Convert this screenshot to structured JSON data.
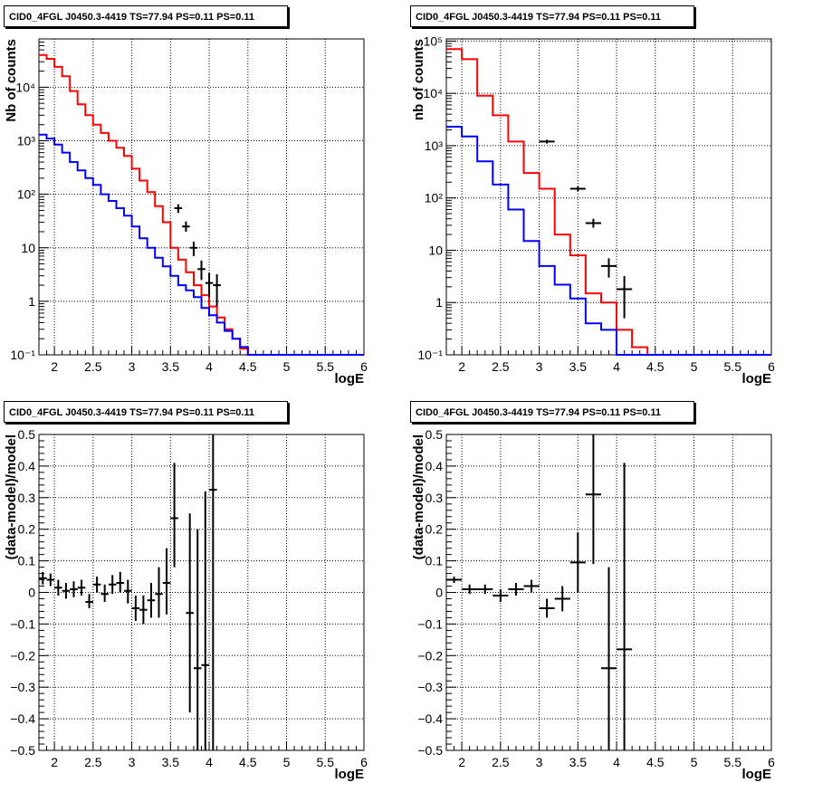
{
  "panel_title": "CID0_4FGL J0450.3-4419 TS=77.94 PS=0.11 PS=0.11",
  "chart_data": [
    {
      "type": "line",
      "title": "CID0_4FGL J0450.3-4419 TS=77.94 PS=0.11 PS=0.11",
      "xlabel": "logE",
      "ylabel": "Nb of counts",
      "log_y": true,
      "xlim": [
        1.8,
        6.0
      ],
      "ylim": [
        0.1,
        80000
      ],
      "x_ticks": [
        "2",
        "2.5",
        "3",
        "3.5",
        "4",
        "4.5",
        "5",
        "5.5",
        "6"
      ],
      "y_ticks": [
        "10⁻¹",
        "1",
        "10",
        "10²",
        "10³",
        "10⁴"
      ],
      "grid": true,
      "bin_edges": [
        1.8,
        1.9,
        2.0,
        2.1,
        2.2,
        2.3,
        2.4,
        2.5,
        2.6,
        2.7,
        2.8,
        2.9,
        3.0,
        3.1,
        3.2,
        3.3,
        3.4,
        3.5,
        3.6,
        3.7,
        3.8,
        3.9,
        4.0,
        4.1,
        4.2,
        4.3,
        4.4,
        4.5,
        4.6,
        4.7,
        4.8,
        4.9,
        5.0,
        5.1,
        5.2,
        5.3,
        5.4,
        5.5,
        5.6,
        5.7,
        5.8,
        5.9,
        6.0
      ],
      "series": [
        {
          "color": "#ff0000",
          "values": [
            40000,
            34000,
            24000,
            16000,
            8500,
            4800,
            3000,
            2000,
            1400,
            1000,
            740,
            520,
            300,
            180,
            110,
            60,
            30,
            10,
            6,
            3.5,
            2,
            1.3,
            0.8,
            0.5,
            0.3,
            0.2,
            0.13,
            0.1,
            0.1,
            0.1,
            0.1,
            0.1,
            0.1,
            0.1,
            0.1,
            0.1,
            0.1,
            0.1,
            0.1,
            0.1,
            0.1,
            0.1
          ]
        },
        {
          "color": "#0000ff",
          "values": [
            1300,
            1100,
            850,
            600,
            400,
            280,
            200,
            150,
            100,
            75,
            55,
            40,
            25,
            15,
            10,
            6.5,
            4.5,
            3,
            2,
            1.6,
            1.2,
            0.75,
            0.55,
            0.4,
            0.28,
            0.2,
            0.14,
            0.1,
            0.1,
            0.1,
            0.1,
            0.1,
            0.1,
            0.1,
            0.1,
            0.1,
            0.1,
            0.1,
            0.1,
            0.1,
            0.1,
            0.1
          ]
        }
      ],
      "data_points": [
        {
          "x": 3.6,
          "y": 55,
          "xerr": 0.05,
          "ylo": 45,
          "yhi": 65
        },
        {
          "x": 3.7,
          "y": 25,
          "xerr": 0.05,
          "ylo": 20,
          "yhi": 31
        },
        {
          "x": 3.8,
          "y": 10,
          "xerr": 0.05,
          "ylo": 7,
          "yhi": 13
        },
        {
          "x": 3.9,
          "y": 4,
          "xerr": 0.05,
          "ylo": 2.5,
          "yhi": 5.8
        },
        {
          "x": 4.0,
          "y": 2.2,
          "xerr": 0.05,
          "ylo": 1.2,
          "yhi": 3.4
        },
        {
          "x": 4.1,
          "y": 2.0,
          "xerr": 0.05,
          "ylo": 0.8,
          "yhi": 3.2
        }
      ]
    },
    {
      "type": "line",
      "title": "CID0_4FGL J0450.3-4419 TS=77.94 PS=0.11 PS=0.11",
      "xlabel": "logE",
      "ylabel": "nb of counts",
      "log_y": true,
      "xlim": [
        1.8,
        6.0
      ],
      "ylim": [
        0.1,
        110000
      ],
      "x_ticks": [
        "2",
        "2.5",
        "3",
        "3.5",
        "4",
        "4.5",
        "5",
        "5.5",
        "6"
      ],
      "y_ticks": [
        "10⁻¹",
        "1",
        "10",
        "10²",
        "10³",
        "10⁴",
        "10⁵"
      ],
      "grid": true,
      "bin_edges": [
        1.8,
        2.0,
        2.2,
        2.4,
        2.6,
        2.8,
        3.0,
        3.2,
        3.4,
        3.6,
        3.8,
        4.0,
        4.2,
        4.4,
        4.6,
        4.8,
        5.0,
        5.2,
        5.4,
        5.6,
        5.8,
        6.0
      ],
      "series": [
        {
          "color": "#ff0000",
          "values": [
            70000,
            45000,
            9000,
            3800,
            1200,
            300,
            150,
            20,
            8,
            1.5,
            1,
            0.3,
            0.14,
            0.1,
            0.1,
            0.1,
            0.1,
            0.1,
            0.1,
            0.1,
            0.1
          ]
        },
        {
          "color": "#0000ff",
          "values": [
            2300,
            1500,
            500,
            180,
            60,
            15,
            5,
            2.2,
            1.2,
            0.4,
            0.3,
            0.1,
            0.1,
            0.1,
            0.1,
            0.1,
            0.1,
            0.1,
            0.1,
            0.1,
            0.1
          ]
        }
      ],
      "data_points": [
        {
          "x": 3.1,
          "y": 1200,
          "xerr": 0.1,
          "ylo": 1100,
          "yhi": 1300
        },
        {
          "x": 3.5,
          "y": 150,
          "xerr": 0.1,
          "ylo": 135,
          "yhi": 165
        },
        {
          "x": 3.7,
          "y": 33,
          "xerr": 0.1,
          "ylo": 27,
          "yhi": 40
        },
        {
          "x": 3.9,
          "y": 5,
          "xerr": 0.1,
          "ylo": 3,
          "yhi": 7
        },
        {
          "x": 4.1,
          "y": 1.8,
          "xerr": 0.1,
          "ylo": 0.5,
          "yhi": 3.2
        }
      ]
    },
    {
      "type": "scatter",
      "title": "CID0_4FGL J0450.3-4419 TS=77.94 PS=0.11 PS=0.11",
      "xlabel": "logE",
      "ylabel": "(data-model)/model",
      "log_y": false,
      "xlim": [
        1.8,
        6.0
      ],
      "ylim": [
        -0.5,
        0.5
      ],
      "x_ticks": [
        "2",
        "2.5",
        "3",
        "3.5",
        "4",
        "4.5",
        "5",
        "5.5",
        "6"
      ],
      "y_ticks": [
        "−0.5",
        "−0.4",
        "−0.3",
        "−0.2",
        "−0.1",
        "0",
        "0.1",
        "0.2",
        "0.3",
        "0.4",
        "0.5"
      ],
      "grid": true,
      "data_points": [
        {
          "x": 1.85,
          "y": 0.045,
          "xerr": 0.05,
          "ylo": 0.025,
          "yhi": 0.065
        },
        {
          "x": 1.95,
          "y": 0.04,
          "xerr": 0.05,
          "ylo": 0.02,
          "yhi": 0.06
        },
        {
          "x": 2.05,
          "y": 0.015,
          "xerr": 0.05,
          "ylo": -0.01,
          "yhi": 0.04
        },
        {
          "x": 2.15,
          "y": 0.005,
          "xerr": 0.05,
          "ylo": -0.02,
          "yhi": 0.03
        },
        {
          "x": 2.25,
          "y": 0.01,
          "xerr": 0.05,
          "ylo": -0.015,
          "yhi": 0.035
        },
        {
          "x": 2.35,
          "y": 0.015,
          "xerr": 0.05,
          "ylo": -0.01,
          "yhi": 0.04
        },
        {
          "x": 2.45,
          "y": -0.03,
          "xerr": 0.05,
          "ylo": -0.05,
          "yhi": -0.005
        },
        {
          "x": 2.55,
          "y": 0.025,
          "xerr": 0.05,
          "ylo": 0.0,
          "yhi": 0.05
        },
        {
          "x": 2.65,
          "y": -0.005,
          "xerr": 0.05,
          "ylo": -0.03,
          "yhi": 0.025
        },
        {
          "x": 2.75,
          "y": 0.025,
          "xerr": 0.05,
          "ylo": -0.005,
          "yhi": 0.055
        },
        {
          "x": 2.85,
          "y": 0.03,
          "xerr": 0.05,
          "ylo": 0.0,
          "yhi": 0.065
        },
        {
          "x": 2.95,
          "y": 0.005,
          "xerr": 0.05,
          "ylo": -0.035,
          "yhi": 0.04
        },
        {
          "x": 3.05,
          "y": -0.05,
          "xerr": 0.05,
          "ylo": -0.09,
          "yhi": -0.01
        },
        {
          "x": 3.15,
          "y": -0.055,
          "xerr": 0.05,
          "ylo": -0.1,
          "yhi": -0.01
        },
        {
          "x": 3.25,
          "y": -0.025,
          "xerr": 0.05,
          "ylo": -0.08,
          "yhi": 0.03
        },
        {
          "x": 3.35,
          "y": -0.005,
          "xerr": 0.05,
          "ylo": -0.08,
          "yhi": 0.08
        },
        {
          "x": 3.45,
          "y": 0.03,
          "xerr": 0.05,
          "ylo": -0.07,
          "yhi": 0.14
        },
        {
          "x": 3.55,
          "y": 0.235,
          "xerr": 0.05,
          "ylo": 0.08,
          "yhi": 0.41
        },
        {
          "x": 3.75,
          "y": -0.065,
          "xerr": 0.05,
          "ylo": -0.38,
          "yhi": 0.25
        },
        {
          "x": 3.85,
          "y": -0.24,
          "xerr": 0.05,
          "ylo": -0.5,
          "yhi": 0.2
        },
        {
          "x": 3.95,
          "y": -0.23,
          "xerr": 0.05,
          "ylo": -0.5,
          "yhi": 0.32
        },
        {
          "x": 4.05,
          "y": 0.325,
          "xerr": 0.05,
          "ylo": -0.5,
          "yhi": 0.5
        }
      ]
    },
    {
      "type": "scatter",
      "title": "CID0_4FGL J0450.3-4419 TS=77.94 PS=0.11 PS=0.11",
      "xlabel": "logE",
      "ylabel": "(data-model)/model",
      "log_y": false,
      "xlim": [
        1.8,
        6.0
      ],
      "ylim": [
        -0.5,
        0.5
      ],
      "x_ticks": [
        "2",
        "2.5",
        "3",
        "3.5",
        "4",
        "4.5",
        "5",
        "5.5",
        "6"
      ],
      "y_ticks": [
        "−0.5",
        "−0.4",
        "−0.3",
        "−0.2",
        "−0.1",
        "0",
        "0.1",
        "0.2",
        "0.3",
        "0.4",
        "0.5"
      ],
      "grid": true,
      "data_points": [
        {
          "x": 1.9,
          "y": 0.04,
          "xerr": 0.1,
          "ylo": 0.03,
          "yhi": 0.05
        },
        {
          "x": 2.1,
          "y": 0.01,
          "xerr": 0.1,
          "ylo": -0.005,
          "yhi": 0.025
        },
        {
          "x": 2.3,
          "y": 0.01,
          "xerr": 0.1,
          "ylo": -0.005,
          "yhi": 0.025
        },
        {
          "x": 2.5,
          "y": -0.01,
          "xerr": 0.1,
          "ylo": -0.03,
          "yhi": 0.01
        },
        {
          "x": 2.7,
          "y": 0.01,
          "xerr": 0.1,
          "ylo": -0.01,
          "yhi": 0.03
        },
        {
          "x": 2.9,
          "y": 0.02,
          "xerr": 0.1,
          "ylo": 0.0,
          "yhi": 0.04
        },
        {
          "x": 3.1,
          "y": -0.05,
          "xerr": 0.1,
          "ylo": -0.08,
          "yhi": -0.02
        },
        {
          "x": 3.3,
          "y": -0.02,
          "xerr": 0.1,
          "ylo": -0.06,
          "yhi": 0.02
        },
        {
          "x": 3.5,
          "y": 0.095,
          "xerr": 0.1,
          "ylo": 0.0,
          "yhi": 0.19
        },
        {
          "x": 3.7,
          "y": 0.31,
          "xerr": 0.1,
          "ylo": 0.09,
          "yhi": 0.5
        },
        {
          "x": 3.9,
          "y": -0.24,
          "xerr": 0.1,
          "ylo": -0.5,
          "yhi": 0.08
        },
        {
          "x": 4.1,
          "y": -0.18,
          "xerr": 0.1,
          "ylo": -0.5,
          "yhi": 0.41
        }
      ]
    }
  ]
}
